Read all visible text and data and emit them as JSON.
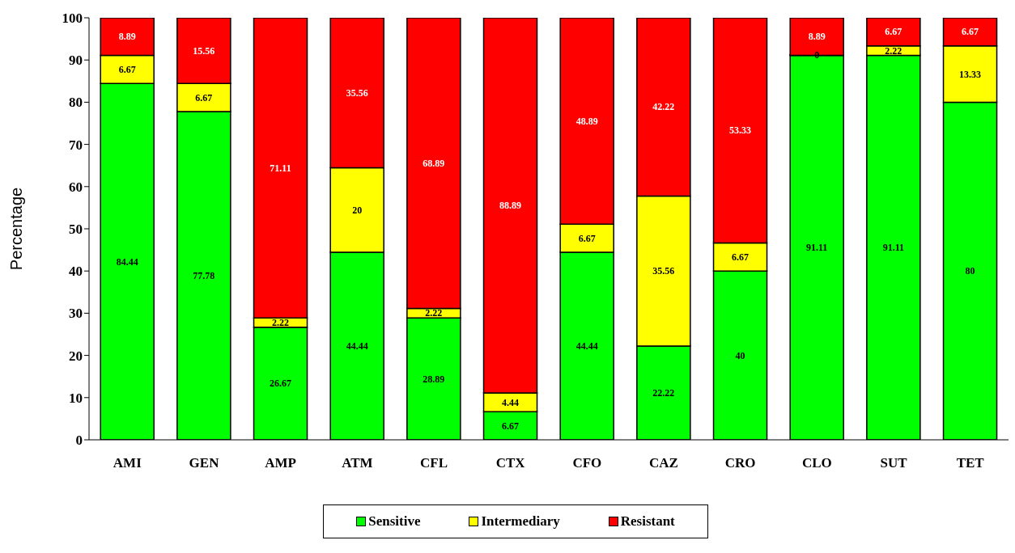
{
  "chart_data": {
    "type": "bar",
    "stacked": true,
    "ylabel": "Percentage",
    "categories": [
      "AMI",
      "GEN",
      "AMP",
      "ATM",
      "CFL",
      "CTX",
      "CFO",
      "CAZ",
      "CRO",
      "CLO",
      "SUT",
      "TET"
    ],
    "series": [
      {
        "name": "Sensitive",
        "color": "#00ff00",
        "values": [
          84.44,
          77.78,
          26.67,
          44.44,
          28.89,
          6.67,
          44.44,
          22.22,
          40,
          91.11,
          91.11,
          80
        ]
      },
      {
        "name": "Intermediary",
        "color": "#ffff00",
        "values": [
          6.67,
          6.67,
          2.22,
          20,
          2.22,
          4.44,
          6.67,
          35.56,
          6.67,
          0,
          2.22,
          13.33
        ]
      },
      {
        "name": "Resistant",
        "color": "#ff0000",
        "values": [
          8.89,
          15.56,
          71.11,
          35.56,
          68.89,
          88.89,
          48.89,
          42.22,
          53.33,
          8.89,
          6.67,
          6.67
        ]
      }
    ],
    "ylim": [
      0,
      100
    ],
    "yticks": [
      0,
      10,
      20,
      30,
      40,
      50,
      60,
      70,
      80,
      90,
      100
    ],
    "data_labels": true,
    "legend": "bottom",
    "grid": false
  }
}
